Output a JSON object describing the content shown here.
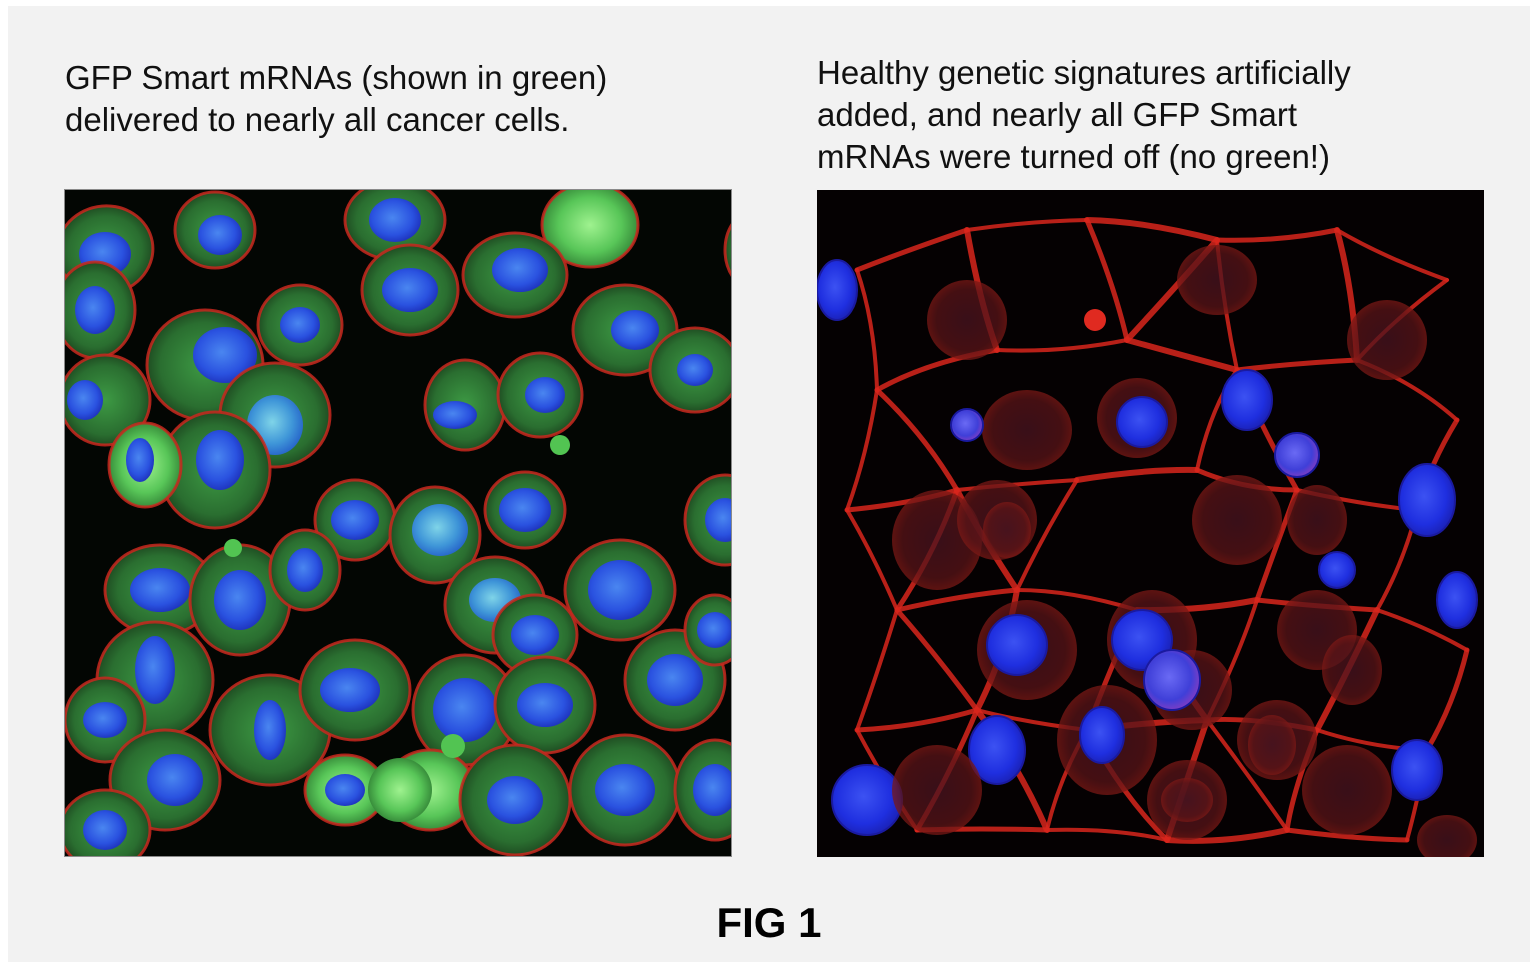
{
  "panels": [
    {
      "caption_lines": [
        "GFP Smart mRNAs (shown in green)",
        "delivered to nearly all cancer cells."
      ],
      "image": "fluorescence-micrograph-green-cells"
    },
    {
      "caption_lines": [
        "Healthy genetic signatures artificially",
        "added, and nearly all GFP Smart",
        "mRNAs were turned off (no green!)"
      ],
      "image": "fluorescence-micrograph-red-cells"
    }
  ],
  "figure_label": "FIG 1",
  "colors": {
    "background": "#f2f2f2",
    "nucleus_stain": "#1e3ce6",
    "gfp_stain": "#2f8a3a",
    "membrane_stain": "#e0221c"
  }
}
